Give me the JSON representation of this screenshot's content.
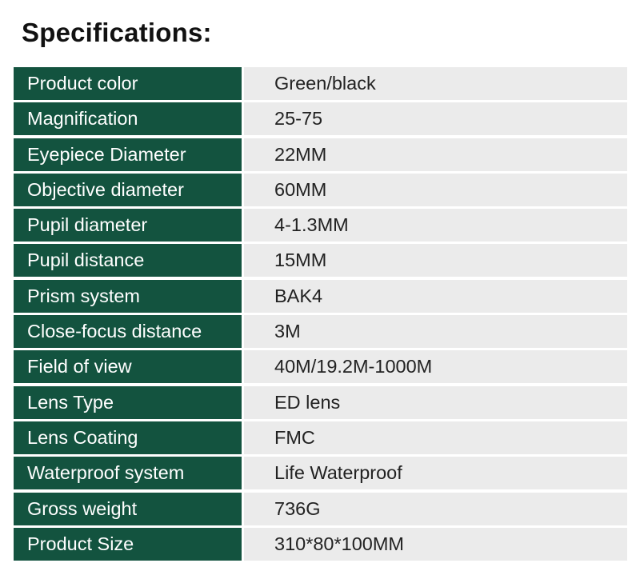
{
  "title": "Specifications:",
  "colors": {
    "label_bg": "#13533f",
    "value_bg": "#ebebeb"
  },
  "specs": [
    {
      "label": "Product color",
      "value": "Green/black"
    },
    {
      "label": "Magnification",
      "value": "25-75"
    },
    {
      "label": "Eyepiece Diameter",
      "value": "22MM"
    },
    {
      "label": "Objective diameter",
      "value": "60MM"
    },
    {
      "label": "Pupil diameter",
      "value": "4-1.3MM"
    },
    {
      "label": "Pupil distance",
      "value": "15MM"
    },
    {
      "label": "Prism system",
      "value": "BAK4"
    },
    {
      "label": "Close-focus distance",
      "value": "3M"
    },
    {
      "label": "Field of view",
      "value": "40M/19.2M-1000M"
    },
    {
      "label": "Lens Type",
      "value": "ED lens"
    },
    {
      "label": "Lens Coating",
      "value": "FMC"
    },
    {
      "label": "Waterproof system",
      "value": "Life Waterproof"
    },
    {
      "label": "Gross weight",
      "value": "736G"
    },
    {
      "label": "Product Size",
      "value": "310*80*100MM"
    }
  ]
}
